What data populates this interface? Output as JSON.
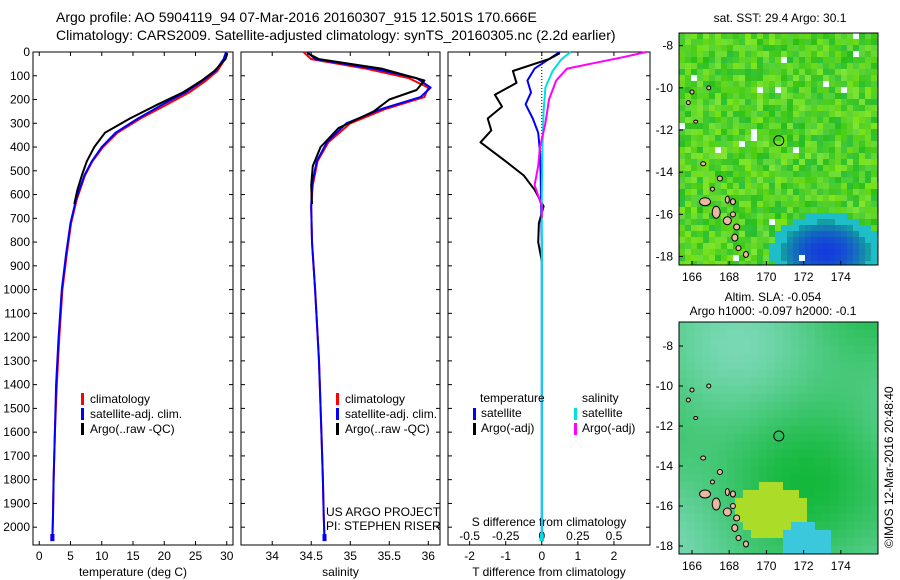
{
  "header": {
    "title_line1": "Argo profile: AO 5904119_94 07-Mar-2016 20160307_915 12.501S 170.666E",
    "title_line2": "Climatology: CARS2009. Satellite-adjusted climatology: synTS_20160305.nc (2.2d earlier)"
  },
  "colors": {
    "climatology": "#ff0000",
    "satellite": "#0000ff",
    "argo": "#000000",
    "salinity_satellite": "#00e0e0",
    "salinity_argo": "#ff00ff",
    "land": "#e8b8a0"
  },
  "chart_data": [
    {
      "id": "temperature",
      "type": "line",
      "xlabel": "temperature (deg C)",
      "ylabel": "",
      "xlim": [
        -1,
        31
      ],
      "ylim": [
        2075,
        0
      ],
      "xticks": [
        0,
        5,
        10,
        15,
        20,
        25,
        30
      ],
      "yticks": [
        0,
        100,
        200,
        300,
        400,
        500,
        600,
        700,
        800,
        900,
        1000,
        1100,
        1200,
        1300,
        1400,
        1500,
        1600,
        1700,
        1800,
        1900,
        2000
      ],
      "legend": {
        "position": "lower-center",
        "entries": [
          "climatology",
          "satellite-adj. clim.",
          "Argo(..raw -QC)"
        ]
      },
      "series": [
        {
          "name": "climatology",
          "color": "#ff0000",
          "x": [
            30.0,
            29.7,
            28.5,
            26.7,
            24.0,
            20.5,
            16.2,
            12.5,
            10.2,
            8.5,
            7.3,
            6.0,
            5.1,
            4.4,
            3.7,
            3.2,
            2.8,
            2.5,
            2.3,
            2.2,
            2.1
          ],
          "y": [
            0,
            30,
            80,
            120,
            170,
            220,
            280,
            340,
            400,
            460,
            520,
            620,
            720,
            850,
            1000,
            1200,
            1400,
            1600,
            1800,
            1950,
            2050
          ]
        },
        {
          "name": "satellite-adj. clim.",
          "color": "#0000ff",
          "x": [
            29.9,
            29.5,
            28.2,
            26.2,
            23.4,
            19.8,
            15.8,
            12.2,
            10.0,
            8.4,
            7.2,
            5.9,
            5.0,
            4.3,
            3.6,
            3.1,
            2.7,
            2.5,
            2.3,
            2.2,
            2.1
          ],
          "y": [
            0,
            30,
            80,
            120,
            170,
            220,
            280,
            340,
            400,
            460,
            520,
            620,
            720,
            850,
            1000,
            1200,
            1400,
            1600,
            1800,
            1950,
            2050
          ]
        },
        {
          "name": "Argo(..raw -QC)",
          "color": "#000000",
          "x": [
            30.1,
            29.8,
            28.0,
            26.0,
            23.0,
            19.0,
            14.5,
            10.5,
            8.8,
            7.6,
            6.8,
            6.1,
            5.6
          ],
          "y": [
            5,
            30,
            80,
            120,
            170,
            220,
            280,
            340,
            400,
            460,
            520,
            580,
            640
          ]
        }
      ]
    },
    {
      "id": "salinity",
      "type": "line",
      "xlabel": "salinity",
      "ylabel": "",
      "xlim": [
        33.6,
        36.15
      ],
      "ylim": [
        2075,
        0
      ],
      "xticks": [
        34,
        34.5,
        35,
        35.5,
        36
      ],
      "annotations": [
        "US ARGO PROJECT",
        "PI: STEPHEN RISER"
      ],
      "legend": {
        "position": "lower-center",
        "entries": [
          "climatology",
          "satellite-adj. clim.",
          "Argo(..raw -QC)"
        ]
      },
      "series": [
        {
          "name": "climatology",
          "color": "#ff0000",
          "x": [
            34.4,
            34.5,
            35.2,
            35.75,
            36.0,
            35.95,
            35.45,
            35.0,
            34.72,
            34.58,
            34.52,
            34.5,
            34.51,
            34.55,
            34.6,
            34.63,
            34.65,
            34.66,
            34.67
          ],
          "y": [
            0,
            30,
            70,
            110,
            150,
            190,
            240,
            300,
            380,
            460,
            560,
            650,
            800,
            1000,
            1300,
            1600,
            1800,
            1950,
            2050
          ]
        },
        {
          "name": "satellite-adj. clim.",
          "color": "#0000ff",
          "x": [
            34.45,
            34.55,
            35.3,
            35.85,
            36.03,
            35.9,
            35.4,
            34.95,
            34.7,
            34.57,
            34.51,
            34.5,
            34.51,
            34.55,
            34.6,
            34.63,
            34.65,
            34.66,
            34.67
          ],
          "y": [
            0,
            30,
            70,
            110,
            150,
            190,
            240,
            300,
            380,
            460,
            560,
            650,
            800,
            1000,
            1300,
            1600,
            1800,
            1950,
            2050
          ]
        },
        {
          "name": "Argo(..raw -QC)",
          "color": "#000000",
          "x": [
            34.45,
            34.6,
            35.4,
            35.95,
            35.85,
            35.5,
            35.3,
            34.85,
            34.62,
            34.52,
            34.5,
            34.51
          ],
          "y": [
            5,
            30,
            70,
            120,
            160,
            200,
            250,
            320,
            400,
            480,
            560,
            640
          ]
        }
      ]
    },
    {
      "id": "difference",
      "type": "line",
      "xlabel": "T difference from climatology",
      "xlabel_top": "S difference from climatology",
      "ylabel": "",
      "xlim": [
        -2.6,
        3.0
      ],
      "ylim": [
        2075,
        0
      ],
      "xticks_bottom": [
        -2,
        -1,
        0,
        1,
        2
      ],
      "xticks_top": [
        -0.5,
        -0.25,
        0,
        0.25,
        0.5
      ],
      "legend": {
        "position": "lower-center",
        "entries": [
          "temperature",
          "satellite",
          "Argo(-adj)",
          "salinity",
          "satellite",
          "Argo(-adj)"
        ]
      },
      "series": [
        {
          "name": "temperature satellite",
          "color": "#0000ff",
          "x": [
            0.5,
            0.2,
            -0.2,
            -0.4,
            -0.3,
            -0.45,
            -0.25,
            -0.1,
            -0.05,
            -0.03,
            -0.02,
            0,
            0,
            0
          ],
          "y": [
            0,
            30,
            70,
            120,
            170,
            220,
            280,
            340,
            420,
            520,
            650,
            800,
            1300,
            2050
          ]
        },
        {
          "name": "temperature Argo(-adj)",
          "color": "#000000",
          "x": [
            0.5,
            0.2,
            -0.8,
            -0.7,
            -1.3,
            -1.1,
            -1.5,
            -1.4,
            -1.7,
            -1.0,
            -0.5,
            -0.2,
            0.05,
            -0.08,
            -0.1,
            0
          ],
          "y": [
            5,
            30,
            80,
            130,
            180,
            230,
            280,
            330,
            380,
            460,
            520,
            580,
            650,
            720,
            800,
            880
          ]
        },
        {
          "name": "salinity satellite",
          "color": "#00e0e0",
          "x": [
            0.8,
            0.55,
            0.3,
            0.1,
            0.05,
            0.02,
            0,
            0,
            0
          ],
          "y": [
            0,
            30,
            80,
            150,
            250,
            400,
            600,
            900,
            2050
          ]
        },
        {
          "name": "salinity Argo(-adj)",
          "color": "#ff00ff",
          "x": [
            2.9,
            2.3,
            0.7,
            0.4,
            0.2,
            0.1,
            -0.05,
            -0.1,
            -0.2,
            0,
            0
          ],
          "y": [
            0,
            20,
            70,
            120,
            200,
            300,
            400,
            480,
            560,
            650,
            700
          ]
        }
      ]
    },
    {
      "id": "sst-map",
      "type": "heatmap",
      "title": "sat. SST: 29.4 Argo: 30.1",
      "xlim": [
        165.3,
        176
      ],
      "ylim": [
        -18.4,
        -7.4
      ],
      "xticks": [
        166,
        168,
        170,
        172,
        174
      ],
      "yticks": [
        -8,
        -10,
        -12,
        -14,
        -16,
        -18
      ],
      "marker": {
        "lon": 170.666,
        "lat": -12.501
      }
    },
    {
      "id": "sla-map",
      "type": "heatmap",
      "title_line1": "Altim. SLA: -0.054",
      "title_line2": "Argo h1000: -0.097 h2000: -0.1",
      "xlim": [
        165.3,
        176
      ],
      "ylim": [
        -18.4,
        -6.8
      ],
      "xticks": [
        166,
        168,
        170,
        172,
        174
      ],
      "yticks": [
        -8,
        -10,
        -12,
        -14,
        -16,
        -18
      ],
      "marker": {
        "lon": 170.666,
        "lat": -12.501
      }
    }
  ],
  "footer": {
    "stamp": "©IMOS 12-Mar-2016 20:48:40"
  }
}
